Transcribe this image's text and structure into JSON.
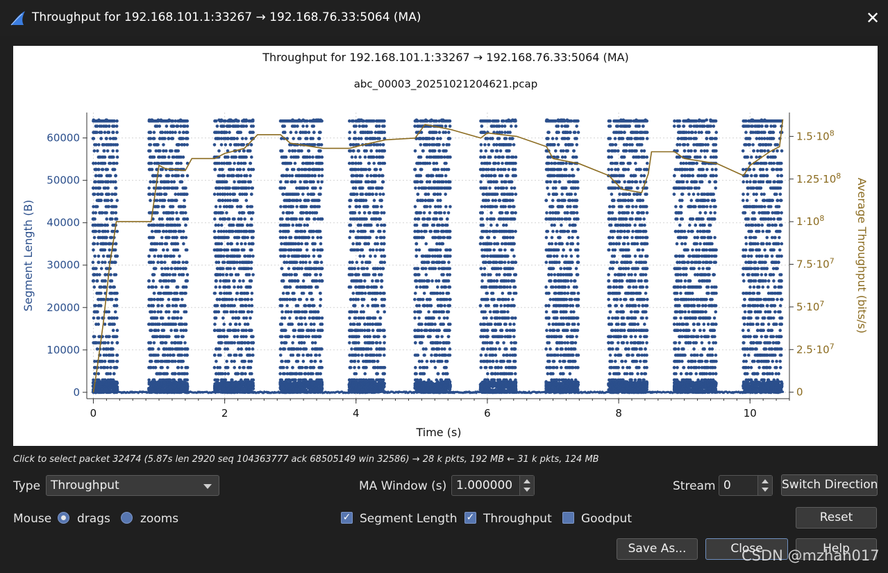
{
  "window": {
    "title": "Throughput for 192.168.101.1:33267 → 192.168.76.33:5064 (MA)",
    "close_glyph": "✕",
    "app_icon": "shark-fin-icon"
  },
  "chart_data": {
    "type": "scatter",
    "title": "Throughput for 192.168.101.1:33267 → 192.168.76.33:5064 (MA)",
    "subtitle": "abc_00003_20251021204621.pcap",
    "xlabel": "Time (s)",
    "ylabel": "Segment Length (B)",
    "y2label": "Average Throughput (bits/s)",
    "xlim": [
      -0.1,
      10.6
    ],
    "ylim": [
      -1500,
      66000
    ],
    "y2lim": [
      -3800000,
      164000000
    ],
    "x_ticks": [
      "0",
      "2",
      "4",
      "6",
      "8",
      "10"
    ],
    "y_ticks": [
      "0",
      "10000",
      "20000",
      "30000",
      "40000",
      "50000",
      "60000"
    ],
    "y2_ticks": [
      {
        "base": "0",
        "exp": ""
      },
      {
        "base": "2.5·10",
        "exp": "7"
      },
      {
        "base": "5·10",
        "exp": "7"
      },
      {
        "base": "7.5·10",
        "exp": "7"
      },
      {
        "base": "1·10",
        "exp": "8"
      },
      {
        "base": "1.25·10",
        "exp": "8"
      },
      {
        "base": "1.5·10",
        "exp": "8"
      }
    ],
    "grid": true,
    "series": [
      {
        "name": "Segment Length",
        "color": "#2b4f8c",
        "bursts": [
          {
            "start": 0.0,
            "end": 0.38
          },
          {
            "start": 0.85,
            "end": 1.45
          },
          {
            "start": 1.85,
            "end": 2.45
          },
          {
            "start": 2.85,
            "end": 3.5
          },
          {
            "start": 3.9,
            "end": 4.45
          },
          {
            "start": 4.9,
            "end": 5.45
          },
          {
            "start": 5.9,
            "end": 6.45
          },
          {
            "start": 6.9,
            "end": 7.4
          },
          {
            "start": 7.85,
            "end": 8.45
          },
          {
            "start": 8.85,
            "end": 9.5
          },
          {
            "start": 9.9,
            "end": 10.5
          }
        ],
        "max_value": 64000
      },
      {
        "name": "Throughput",
        "color": "#8b6b1f",
        "points": [
          [
            0.0,
            0
          ],
          [
            0.05,
            12000000
          ],
          [
            0.15,
            40000000
          ],
          [
            0.25,
            75000000
          ],
          [
            0.35,
            100000000
          ],
          [
            0.88,
            100000000
          ],
          [
            1.0,
            133000000
          ],
          [
            1.1,
            131000000
          ],
          [
            1.4,
            130000000
          ],
          [
            1.5,
            137000000
          ],
          [
            1.85,
            137000000
          ],
          [
            2.0,
            140000000
          ],
          [
            2.3,
            143000000
          ],
          [
            2.5,
            151000000
          ],
          [
            2.85,
            151000000
          ],
          [
            3.0,
            146000000
          ],
          [
            3.5,
            143000000
          ],
          [
            3.9,
            143000000
          ],
          [
            4.1,
            145000000
          ],
          [
            4.45,
            148000000
          ],
          [
            4.9,
            149000000
          ],
          [
            5.05,
            157000000
          ],
          [
            5.45,
            154000000
          ],
          [
            5.9,
            149000000
          ],
          [
            6.0,
            152000000
          ],
          [
            6.45,
            150000000
          ],
          [
            6.9,
            144000000
          ],
          [
            7.0,
            137000000
          ],
          [
            7.4,
            134000000
          ],
          [
            7.85,
            127000000
          ],
          [
            8.05,
            119000000
          ],
          [
            8.35,
            117000000
          ],
          [
            8.45,
            128000000
          ],
          [
            8.5,
            141000000
          ],
          [
            8.85,
            141000000
          ],
          [
            9.0,
            137000000
          ],
          [
            9.5,
            134000000
          ],
          [
            9.9,
            127000000
          ],
          [
            10.0,
            133000000
          ],
          [
            10.3,
            141000000
          ],
          [
            10.45,
            144000000
          ],
          [
            10.5,
            160000000
          ]
        ]
      }
    ]
  },
  "status": {
    "hint": "Click to select packet 32474 (5.87s len 2920 seq 104363777 ack 68505149 win 32586) → 28 k pkts, 192 MB ← 31 k pkts, 124 MB"
  },
  "controls": {
    "type_label": "Type",
    "type_value": "Throughput",
    "ma_label": "MA Window (s)",
    "ma_value": "1.000000",
    "stream_label": "Stream",
    "stream_value": "0",
    "switch_direction": "Switch Direction",
    "mouse_label": "Mouse",
    "drags_label": "drags",
    "zooms_label": "zooms",
    "segment_length_label": "Segment Length",
    "throughput_label": "Throughput",
    "goodput_label": "Goodput",
    "reset_label": "Reset",
    "save_as_label": "Save As...",
    "close_label": "Close",
    "help_label": "Help",
    "check_glyph": "✓"
  },
  "watermark": "CSDN @mzhan017"
}
